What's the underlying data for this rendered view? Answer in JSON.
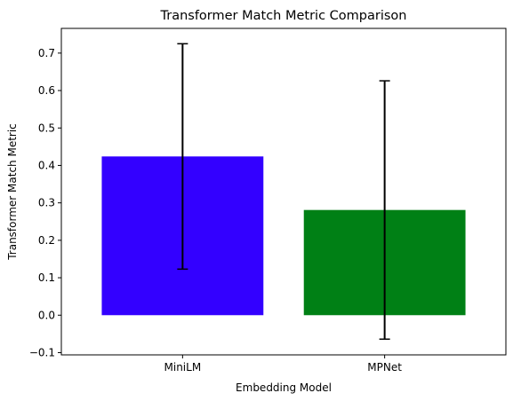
{
  "chart_data": {
    "type": "bar",
    "title": "Transformer Match Metric Comparison",
    "xlabel": "Embedding Model",
    "ylabel": "Transformer Match Metric",
    "categories": [
      "MiniLM",
      "MPNet"
    ],
    "values": [
      0.424,
      0.281
    ],
    "error": [
      0.301,
      0.345
    ],
    "colors": [
      "#3300ff",
      "#008015"
    ],
    "ylim": [
      -0.106,
      0.766
    ],
    "yticks": [
      -0.1,
      0.0,
      0.1,
      0.2,
      0.3,
      0.4,
      0.5,
      0.6,
      0.7
    ],
    "grid": false,
    "legend": "none"
  }
}
